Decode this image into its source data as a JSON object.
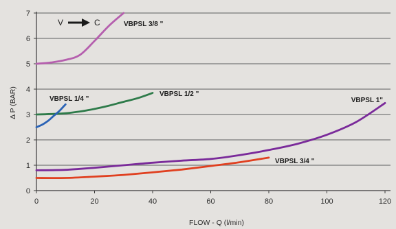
{
  "chart_data": {
    "type": "line",
    "xlabel": "FLOW - Q (l/min)",
    "ylabel": "Δ P (BAR)",
    "xlim": [
      0,
      120
    ],
    "ylim": [
      0,
      7
    ],
    "xticks": [
      0,
      20,
      40,
      60,
      80,
      100,
      120
    ],
    "yticks": [
      0,
      1,
      2,
      3,
      4,
      5,
      6,
      7
    ],
    "grid": "horizontal",
    "annotation": {
      "from": "V",
      "to": "C"
    },
    "series": [
      {
        "name": "VBPSL 3/8 \"",
        "color": "#b55fae",
        "points": [
          [
            0,
            5.0
          ],
          [
            5,
            5.05
          ],
          [
            10,
            5.15
          ],
          [
            15,
            5.35
          ],
          [
            20,
            5.9
          ],
          [
            25,
            6.5
          ],
          [
            30,
            7.0
          ]
        ]
      },
      {
        "name": "VBPSL 1/2 \"",
        "color": "#2e7b4a",
        "points": [
          [
            0,
            3.0
          ],
          [
            5,
            3.02
          ],
          [
            10,
            3.05
          ],
          [
            15,
            3.12
          ],
          [
            20,
            3.22
          ],
          [
            25,
            3.35
          ],
          [
            30,
            3.5
          ],
          [
            35,
            3.65
          ],
          [
            40,
            3.85
          ]
        ]
      },
      {
        "name": "VBPSL 1/4 \"",
        "color": "#2a62b5",
        "points": [
          [
            0,
            2.5
          ],
          [
            2,
            2.6
          ],
          [
            4,
            2.75
          ],
          [
            6,
            2.95
          ],
          [
            8,
            3.15
          ],
          [
            10,
            3.4
          ]
        ]
      },
      {
        "name": "VBPSL 1\"",
        "color": "#7a2a9a",
        "points": [
          [
            0,
            0.8
          ],
          [
            10,
            0.82
          ],
          [
            20,
            0.9
          ],
          [
            30,
            1.0
          ],
          [
            40,
            1.1
          ],
          [
            50,
            1.18
          ],
          [
            60,
            1.25
          ],
          [
            70,
            1.4
          ],
          [
            80,
            1.6
          ],
          [
            90,
            1.85
          ],
          [
            100,
            2.2
          ],
          [
            110,
            2.7
          ],
          [
            120,
            3.45
          ]
        ]
      },
      {
        "name": "VBPSL 3/4 \"",
        "color": "#e04020",
        "points": [
          [
            0,
            0.5
          ],
          [
            10,
            0.5
          ],
          [
            20,
            0.55
          ],
          [
            30,
            0.62
          ],
          [
            40,
            0.72
          ],
          [
            50,
            0.83
          ],
          [
            60,
            0.97
          ],
          [
            70,
            1.12
          ],
          [
            80,
            1.3
          ]
        ]
      }
    ]
  }
}
